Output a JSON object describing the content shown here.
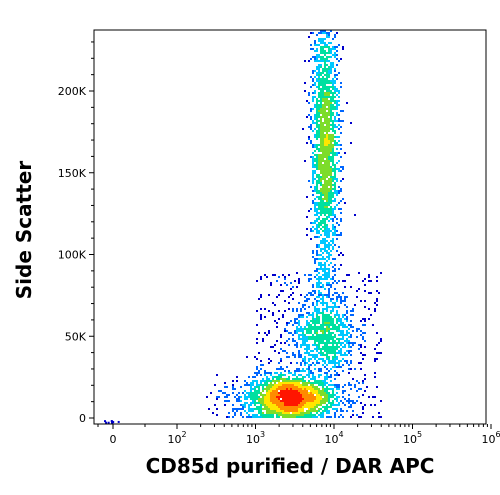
{
  "chart_data": {
    "type": "scatter",
    "title": "",
    "xlabel": "CD85d purified / DAR APC",
    "ylabel": "Side Scatter",
    "x_scale": "biexponential (log above 10^2)",
    "x_ticks": [
      {
        "value": 0,
        "label": "0"
      },
      {
        "value": 100,
        "label": "10",
        "exp": "2"
      },
      {
        "value": 1000,
        "label": "10",
        "exp": "3"
      },
      {
        "value": 10000,
        "label": "10",
        "exp": "4"
      },
      {
        "value": 100000,
        "label": "10",
        "exp": "5"
      },
      {
        "value": 1000000,
        "label": "10",
        "exp": "6"
      }
    ],
    "y_ticks": [
      {
        "value": 0,
        "label": "0"
      },
      {
        "value": 50000,
        "label": "50K"
      },
      {
        "value": 100000,
        "label": "100K"
      },
      {
        "value": 150000,
        "label": "150K"
      },
      {
        "value": 200000,
        "label": "200K"
      }
    ],
    "ylim": [
      0,
      240000
    ],
    "grid": false,
    "colormap": [
      "#0000cc",
      "#0066ff",
      "#00c8ff",
      "#00e0a0",
      "#7ddc2a",
      "#ffe600",
      "#ff8a00",
      "#ff1500"
    ],
    "populations": [
      {
        "name": "",
        "x_center": 2800,
        "y_center": 12000,
        "x_spread_decades": 0.28,
        "y_spread": 7000,
        "events": 2200
      },
      {
        "name": "",
        "x_center": 7500,
        "y_center": 50000,
        "x_spread_decades": 0.2,
        "y_spread": 12000,
        "events": 800
      },
      {
        "name": "",
        "x_center": 7800,
        "y_center": 165000,
        "x_spread_decades": 0.09,
        "y_spread": 45000,
        "events": 2200
      }
    ]
  }
}
